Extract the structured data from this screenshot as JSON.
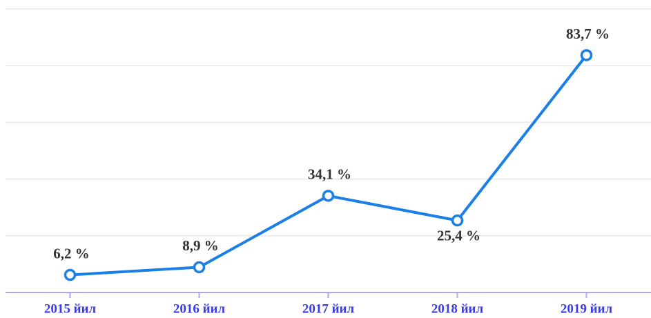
{
  "chart_data": {
    "type": "line",
    "categories": [
      "2015 йил",
      "2016 йил",
      "2017 йил",
      "2018 йил",
      "2019 йил"
    ],
    "series": [
      {
        "color": "#1a7fe6",
        "values": [
          6.2,
          8.9,
          34.1,
          25.4,
          83.7
        ],
        "value_labels": [
          "6,2 %",
          "8,9 %",
          "34,1 %",
          "25,4 %",
          "83,7 %"
        ]
      }
    ],
    "ylim": [
      0,
      100
    ],
    "yticks": [
      0,
      20,
      40,
      60,
      80,
      100
    ],
    "grid": true
  }
}
